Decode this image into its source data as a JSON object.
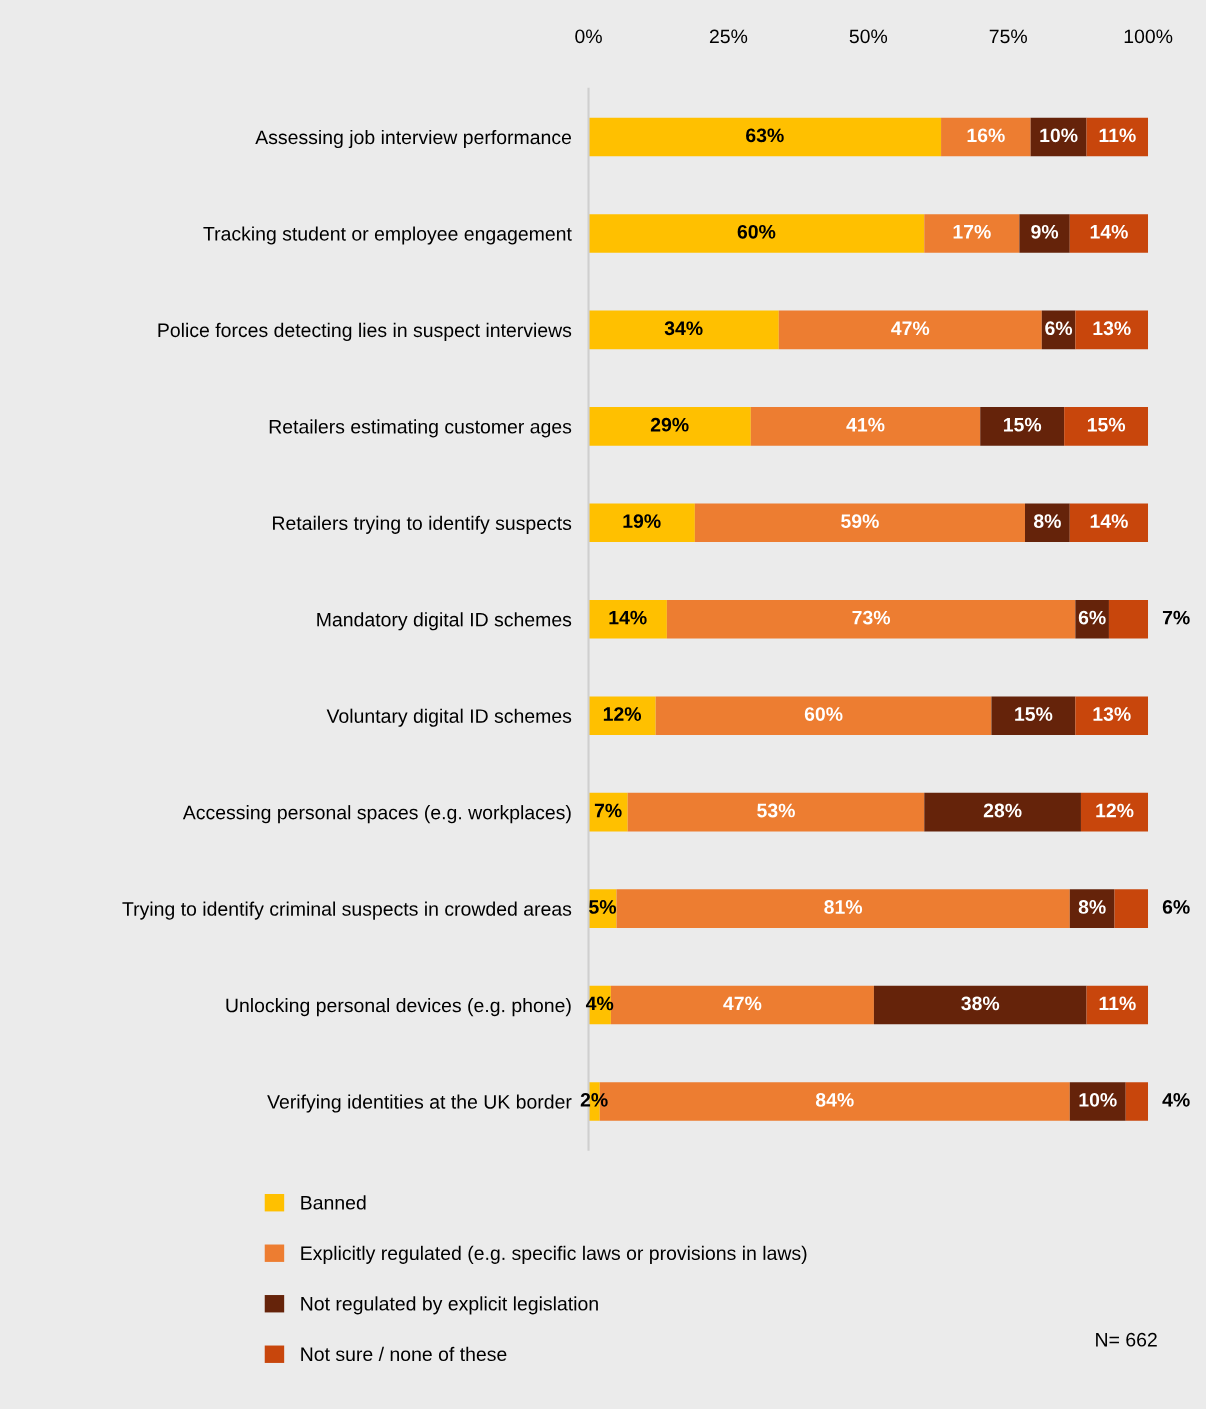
{
  "chart_data": {
    "type": "bar",
    "orientation": "horizontal",
    "stacked": true,
    "legend": "bottom left",
    "grid": false,
    "categories": [
      "Assessing job interview performance",
      "Tracking student or employee engagement",
      "Police forces detecting lies in suspect interviews",
      "Retailers estimating customer ages",
      "Retailers trying to identify suspects",
      "Mandatory digital ID schemes",
      "Voluntary digital ID schemes",
      "Accessing personal spaces (e.g. workplaces)",
      "Trying to identify criminal suspects in crowded areas",
      "Unlocking personal devices (e.g. phone)",
      "Verifying identities at the UK border"
    ],
    "series": [
      {
        "name": "Banned",
        "color": "#ffc000",
        "values": [
          63,
          60,
          34,
          29,
          19,
          14,
          12,
          7,
          5,
          4,
          2
        ],
        "value_labels": [
          "63%",
          "60%",
          "34%",
          "29%",
          "19%",
          "14%",
          "12%",
          "7%",
          "5%",
          "4%",
          "2%"
        ]
      },
      {
        "name": "Explicitly regulated (e.g. specific laws or provisions in laws)",
        "color": "#ed7d31",
        "values": [
          16,
          17,
          47,
          41,
          59,
          73,
          60,
          53,
          81,
          47,
          84
        ],
        "value_labels": [
          "16%",
          "17%",
          "47%",
          "41%",
          "59%",
          "73%",
          "60%",
          "53%",
          "81%",
          "47%",
          "84%"
        ]
      },
      {
        "name": "Not regulated by explicit legislation",
        "color": "#65230a",
        "values": [
          10,
          9,
          6,
          15,
          8,
          6,
          15,
          28,
          8,
          38,
          10
        ],
        "value_labels": [
          "10%",
          "9%",
          "6%",
          "15%",
          "8%",
          "6%",
          "15%",
          "28%",
          "8%",
          "38%",
          "10%"
        ]
      },
      {
        "name": "Not sure / none of these",
        "color": "#c8460c",
        "values": [
          11,
          14,
          13,
          15,
          14,
          7,
          13,
          12,
          6,
          11,
          4
        ],
        "value_labels": [
          "11%",
          "14%",
          "13%",
          "15%",
          "14%",
          "7%",
          "13%",
          "12%",
          "6%",
          "11%",
          "4%"
        ]
      }
    ],
    "xlim": [
      0,
      100
    ],
    "xticks": [
      {
        "value": 0,
        "label": "0%"
      },
      {
        "value": 25,
        "label": "25%"
      },
      {
        "value": 50,
        "label": "50%"
      },
      {
        "value": 75,
        "label": "75%"
      },
      {
        "value": 100,
        "label": "100%"
      }
    ],
    "annotations": [
      "N= 662"
    ]
  }
}
